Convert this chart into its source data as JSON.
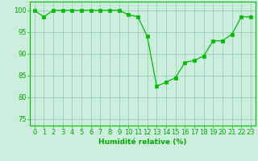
{
  "x": [
    0,
    1,
    2,
    3,
    4,
    5,
    6,
    7,
    8,
    9,
    10,
    11,
    12,
    13,
    14,
    15,
    16,
    17,
    18,
    19,
    20,
    21,
    22,
    23
  ],
  "y": [
    100,
    98.5,
    100,
    100,
    100,
    100,
    100,
    100,
    100,
    100,
    99,
    98.5,
    94,
    82.5,
    83.5,
    84.5,
    88,
    88.5,
    89.5,
    93,
    93,
    94.5,
    98.5,
    98.5
  ],
  "line_color": "#00bb00",
  "marker_color": "#00bb00",
  "bg_color": "#cceedd",
  "grid_major_color": "#99ccbb",
  "grid_minor_color": "#bbddcc",
  "xlabel": "Humidité relative (%)",
  "ylabel_ticks": [
    75,
    80,
    85,
    90,
    95,
    100
  ],
  "xlim": [
    -0.5,
    23.5
  ],
  "ylim": [
    73.5,
    102
  ],
  "xlabel_fontsize": 6.5,
  "tick_fontsize": 6.0,
  "label_color": "#00aa00"
}
